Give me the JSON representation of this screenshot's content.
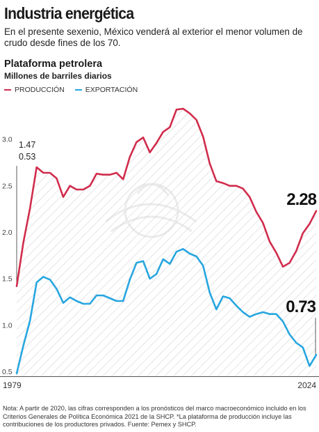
{
  "header": {
    "title": "Industria energética",
    "subtitle": "En el presente sexenio, México venderá al exterior el menor volumen de crudo desde fines de los 70."
  },
  "section_title": "Plataforma petrolera",
  "units_label": "Millones de barriles diarios",
  "colors": {
    "produccion": "#d12c4c",
    "exportacion": "#27a6e0",
    "hatch": "#cfcfcf",
    "axis": "#555555"
  },
  "chart_data": {
    "type": "line",
    "title": "Plataforma petrolera",
    "ylabel": "Millones de barriles diarios",
    "xlabel": "",
    "ylim": [
      0.5,
      3.5
    ],
    "xlim": [
      1979,
      2024
    ],
    "yticks": [
      0.5,
      1.0,
      1.5,
      2.0,
      2.5,
      3.0
    ],
    "ytick_labels": [
      "0.5",
      "1.0",
      "1.5",
      "2.0",
      "2.5",
      "3.0"
    ],
    "xtick_labels": [
      "1979",
      "2024"
    ],
    "grid": false,
    "legend": "top-left",
    "x": [
      1979,
      1980,
      1981,
      1982,
      1983,
      1984,
      1985,
      1986,
      1987,
      1988,
      1989,
      1990,
      1991,
      1992,
      1993,
      1994,
      1995,
      1996,
      1997,
      1998,
      1999,
      2000,
      2001,
      2002,
      2003,
      2004,
      2005,
      2006,
      2007,
      2008,
      2009,
      2010,
      2011,
      2012,
      2013,
      2014,
      2015,
      2016,
      2017,
      2018,
      2019,
      2020,
      2021,
      2022,
      2023,
      2024
    ],
    "series": [
      {
        "name": "PRODUCCIÓN",
        "color": "#d12c4c",
        "values": [
          1.47,
          1.94,
          2.31,
          2.75,
          2.69,
          2.69,
          2.63,
          2.43,
          2.55,
          2.51,
          2.51,
          2.55,
          2.68,
          2.67,
          2.67,
          2.69,
          2.62,
          2.86,
          3.02,
          3.07,
          2.91,
          3.01,
          3.13,
          3.18,
          3.37,
          3.38,
          3.33,
          3.26,
          3.08,
          2.79,
          2.6,
          2.58,
          2.55,
          2.55,
          2.52,
          2.43,
          2.27,
          2.15,
          1.95,
          1.83,
          1.68,
          1.72,
          1.85,
          2.04,
          2.14,
          2.28
        ]
      },
      {
        "name": "EXPORTACIÓN",
        "color": "#27a6e0",
        "values": [
          0.53,
          0.83,
          1.1,
          1.51,
          1.57,
          1.54,
          1.44,
          1.29,
          1.35,
          1.31,
          1.28,
          1.28,
          1.37,
          1.37,
          1.34,
          1.31,
          1.31,
          1.54,
          1.72,
          1.74,
          1.55,
          1.6,
          1.76,
          1.71,
          1.84,
          1.87,
          1.82,
          1.79,
          1.69,
          1.4,
          1.22,
          1.36,
          1.34,
          1.26,
          1.19,
          1.14,
          1.17,
          1.19,
          1.17,
          1.17,
          1.09,
          0.95,
          0.86,
          0.81,
          0.61,
          0.73
        ]
      }
    ],
    "annotations": [
      {
        "text": "1.47",
        "series": "PRODUCCIÓN",
        "x": 1979
      },
      {
        "text": "0.53",
        "series": "EXPORTACIÓN",
        "x": 1979
      },
      {
        "text": "2.28",
        "series": "PRODUCCIÓN",
        "x": 2024
      },
      {
        "text": "0.73",
        "series": "EXPORTACIÓN",
        "x": 2024
      }
    ]
  },
  "footnote": "Nota: A partir de 2020, las cifras corresponden a los pronósticos del marco macroeconómico incluido en los Criterios Generales de Política Económica 2021 de la SHCP. *La plataforma de producción incluye las contribuciones de los productores privados. Fuente: Pemex y SHCP."
}
